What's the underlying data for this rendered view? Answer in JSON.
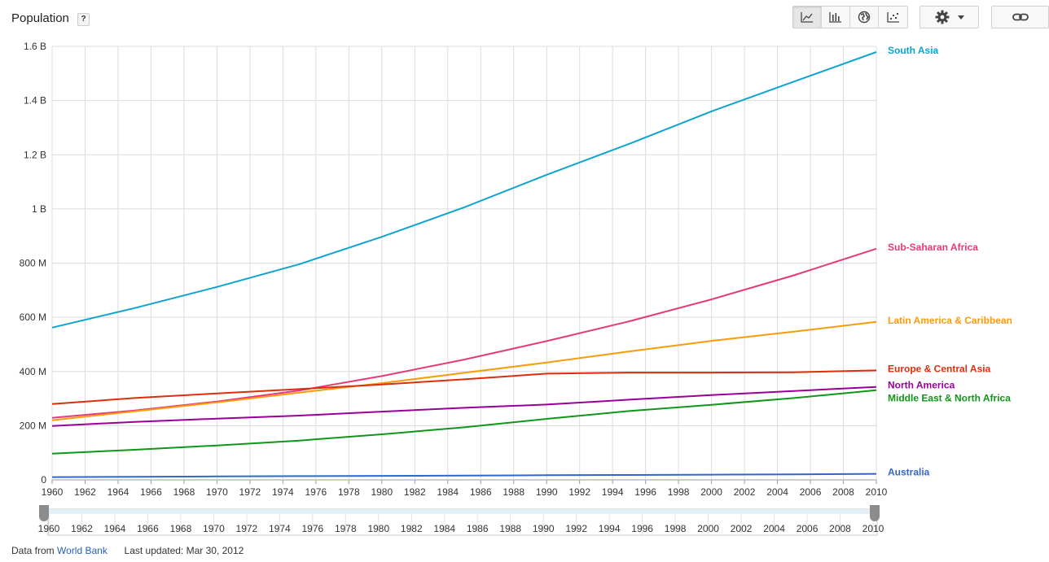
{
  "header": {
    "title": "Population",
    "help_label": "?"
  },
  "toolbar": {
    "views": [
      "line-chart-view",
      "bar-chart-view",
      "map-view",
      "scatter-view"
    ],
    "active_view": "line-chart-view"
  },
  "footer": {
    "source_prefix": "Data from",
    "source_link": "World Bank",
    "updated": "Last updated: Mar 30, 2012"
  },
  "range_slider": {
    "start": 1960,
    "end": 2010
  },
  "chart_data": {
    "type": "line",
    "title": "Population",
    "xlabel": "",
    "ylabel": "",
    "xlim": [
      1960,
      2010
    ],
    "ylim": [
      0,
      1600000000
    ],
    "x_ticks": [
      "1960",
      "1962",
      "1964",
      "1966",
      "1968",
      "1970",
      "1972",
      "1974",
      "1976",
      "1978",
      "1980",
      "1982",
      "1984",
      "1986",
      "1988",
      "1990",
      "1992",
      "1994",
      "1996",
      "1998",
      "2000",
      "2002",
      "2004",
      "2006",
      "2008",
      "2010"
    ],
    "y_ticks": [
      {
        "value": 0,
        "label": "0"
      },
      {
        "value": 200000000,
        "label": "200 M"
      },
      {
        "value": 400000000,
        "label": "400 M"
      },
      {
        "value": 600000000,
        "label": "600 M"
      },
      {
        "value": 800000000,
        "label": "800 M"
      },
      {
        "value": 1000000000,
        "label": "1 B"
      },
      {
        "value": 1200000000,
        "label": "1.2 B"
      },
      {
        "value": 1400000000,
        "label": "1.4 B"
      },
      {
        "value": 1600000000,
        "label": "1.6 B"
      }
    ],
    "x": [
      1960,
      1965,
      1970,
      1975,
      1980,
      1985,
      1990,
      1995,
      2000,
      2005,
      2010
    ],
    "series": [
      {
        "name": "South Asia",
        "color": "#0fa3d1",
        "values": [
          562,
          634,
          712,
          796,
          897,
          1006,
          1126,
          1240,
          1360,
          1470,
          1579
        ]
      },
      {
        "name": "Sub-Saharan Africa",
        "color": "#e53a7a",
        "values": [
          229,
          256,
          289,
          330,
          383,
          444,
          512,
          585,
          666,
          755,
          853
        ]
      },
      {
        "name": "Latin America & Caribbean",
        "color": "#f99b0c",
        "values": [
          220,
          253,
          286,
          322,
          357,
          395,
          433,
          474,
          513,
          547,
          583
        ]
      },
      {
        "name": "Europe & Central Asia",
        "color": "#de2d0b",
        "values": [
          280,
          302,
          319,
          335,
          352,
          371,
          392,
          396,
          396,
          397,
          404
        ]
      },
      {
        "name": "North America",
        "color": "#990099",
        "values": [
          199,
          214,
          226,
          237,
          252,
          266,
          278,
          296,
          313,
          328,
          343
        ]
      },
      {
        "name": "Middle East & North Africa",
        "color": "#109618",
        "values": [
          97,
          111,
          127,
          145,
          168,
          194,
          225,
          254,
          277,
          302,
          331
        ]
      },
      {
        "name": "Australia",
        "color": "#3366cc",
        "values": [
          10.3,
          11.4,
          12.5,
          13.9,
          14.7,
          15.8,
          17.1,
          18.1,
          19.2,
          20.4,
          22.3
        ]
      }
    ],
    "value_unit": "millions",
    "legend": "right, labels at line ends"
  }
}
